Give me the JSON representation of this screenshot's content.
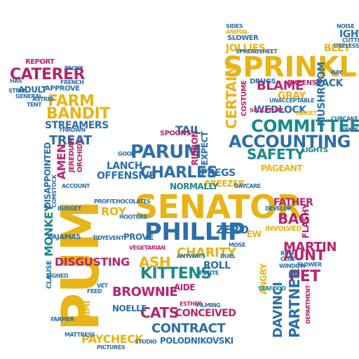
{
  "words": [
    {
      "text": "SENATOR",
      "color": "#1a8a8a"
    },
    {
      "text": "PUM",
      "color": "#e8b416"
    },
    {
      "text": "SPRINKLES",
      "color": "#e8b416"
    },
    {
      "text": "PHILLIP",
      "color": "#2d6fa8"
    },
    {
      "text": "ACCOUNTING",
      "color": "#2d6fa8"
    },
    {
      "text": "COMMITTEE",
      "color": "#1a8a8a"
    },
    {
      "text": "PARUM",
      "color": "#2d6fa8"
    },
    {
      "text": "CHARLES",
      "color": "#2d6fa8"
    },
    {
      "text": "CATERER",
      "color": "#b5266e"
    },
    {
      "text": "FARM",
      "color": "#e8b416"
    },
    {
      "text": "BANDIT",
      "color": "#e8b416"
    },
    {
      "text": "STREAMERS",
      "color": "#2d6fa8"
    },
    {
      "text": "TREAT",
      "color": "#2d6fa8"
    },
    {
      "text": "BLAME",
      "color": "#b5266e"
    },
    {
      "text": "CERTAIN",
      "color": "#e8b416"
    },
    {
      "text": "SAFETY",
      "color": "#1a8a8a"
    },
    {
      "text": "WEDLOCK",
      "color": "#2d6fa8"
    },
    {
      "text": "MARTIN",
      "color": "#b5266e"
    },
    {
      "text": "FATHER",
      "color": "#b5266e"
    },
    {
      "text": "BAG",
      "color": "#b5266e"
    },
    {
      "text": "AUNT",
      "color": "#b5266e"
    },
    {
      "text": "PET",
      "color": "#b5266e"
    },
    {
      "text": "PARTNER",
      "color": "#2d6fa8"
    },
    {
      "text": "DAVINCI",
      "color": "#2d6fa8"
    },
    {
      "text": "KITTENS",
      "color": "#1a8a8a"
    },
    {
      "text": "ASH",
      "color": "#e8b416"
    },
    {
      "text": "CHARITY",
      "color": "#e8b416"
    },
    {
      "text": "BROWNIE",
      "color": "#b5266e"
    },
    {
      "text": "CATS",
      "color": "#b5266e"
    },
    {
      "text": "CONCEIVED",
      "color": "#b5266e"
    },
    {
      "text": "CONTRACT",
      "color": "#2d6fa8"
    },
    {
      "text": "PAYCHECK",
      "color": "#e8b416"
    },
    {
      "text": "POLODNIKOVSKI",
      "color": "#2d6fa8"
    },
    {
      "text": "DISGUSTING",
      "color": "#b5266e"
    },
    {
      "text": "MONKEY",
      "color": "#1a8a8a"
    },
    {
      "text": "AMEN",
      "color": "#b5266e"
    },
    {
      "text": "DISAPPOINTED",
      "color": "#2d6fa8"
    },
    {
      "text": "JOLLIES",
      "color": "#e8b416"
    },
    {
      "text": "ZERO",
      "color": "#2d6fa8"
    },
    {
      "text": "PREGS",
      "color": "#2d6fa8"
    },
    {
      "text": "ROLL",
      "color": "#2d6fa8"
    },
    {
      "text": "ROY",
      "color": "#e8b416"
    },
    {
      "text": "LANCH",
      "color": "#2d6fa8"
    },
    {
      "text": "OFFENSIVE",
      "color": "#2d6fa8"
    },
    {
      "text": "REPORT",
      "color": "#b5266e"
    },
    {
      "text": "ADULT",
      "color": "#2d6fa8"
    },
    {
      "text": "APPROVE",
      "color": "#2d6fa8"
    },
    {
      "text": "TAIL",
      "color": "#2d6fa8"
    },
    {
      "text": "FREEZER",
      "color": "#e8b416"
    },
    {
      "text": "MUSHROOM",
      "color": "#2d6fa8"
    },
    {
      "text": "GRAY",
      "color": "#e8b416"
    },
    {
      "text": "EXPENSE",
      "color": "#b5266e"
    },
    {
      "text": "PACK",
      "color": "#2d6fa8"
    },
    {
      "text": "BEET",
      "color": "#e8b416"
    },
    {
      "text": "IGHT",
      "color": "#2d6fa8"
    },
    {
      "text": "NOELLE",
      "color": "#2d6fa8"
    },
    {
      "text": "MIMI",
      "color": "#e8b416"
    },
    {
      "text": "ANGRY",
      "color": "#e8b416"
    },
    {
      "text": "DRUGS",
      "color": "#2d6fa8"
    },
    {
      "text": "FLASHY",
      "color": "#b5266e"
    },
    {
      "text": "INVOLVED",
      "color": "#e8b416"
    },
    {
      "text": "PAGEANT",
      "color": "#e8b416"
    },
    {
      "text": "LIGHTS",
      "color": "#1a8a8a"
    },
    {
      "text": "SCULPTURE",
      "color": "#b5266e"
    },
    {
      "text": "SEAFOOD",
      "color": "#1a8a8a"
    },
    {
      "text": "WINDOW",
      "color": "#2d6fa8"
    },
    {
      "text": "AIDE",
      "color": "#b5266e"
    },
    {
      "text": "PROVE",
      "color": "#2d6fa8"
    },
    {
      "text": "VEGETARIAN",
      "color": "#b5266e"
    },
    {
      "text": "PAJAMAS",
      "color": "#2d6fa8"
    },
    {
      "text": "SLOWER",
      "color": "#2d6fa8"
    },
    {
      "text": "ANIMAL",
      "color": "#e8b416"
    },
    {
      "text": "DAYCARE",
      "color": "#2d6fa8"
    },
    {
      "text": "ESTHER",
      "color": "#b5266e"
    },
    {
      "text": "SPOONS",
      "color": "#b5266e"
    },
    {
      "text": "EXPECT",
      "color": "#2d6fa8"
    },
    {
      "text": "RIBBON",
      "color": "#b5266e"
    },
    {
      "text": "NORMALLY",
      "color": "#1a8a8a"
    },
    {
      "text": "TARGET",
      "color": "#e8b416"
    },
    {
      "text": "CUPCAKE",
      "color": "#2d6fa8"
    },
    {
      "text": "CLAUSE",
      "color": "#2d6fa8"
    },
    {
      "text": "SIGNED",
      "color": "#2d6fa8"
    },
    {
      "text": "FARMER",
      "color": "#2d6fa8"
    },
    {
      "text": "SPREADSHEET",
      "color": "#2d6fa8"
    },
    {
      "text": "DUEL",
      "color": "#2d6fa8"
    },
    {
      "text": "MOSE",
      "color": "#2d6fa8"
    },
    {
      "text": "PETITE",
      "color": "#2d6fa8"
    },
    {
      "text": "STUDIO",
      "color": "#2d6fa8"
    },
    {
      "text": "VET",
      "color": "#2d6fa8"
    },
    {
      "text": "FEED",
      "color": "#2d6fa8"
    },
    {
      "text": "MATTRESS",
      "color": "#2d6fa8"
    },
    {
      "text": "ORCHIDS",
      "color": "#b5266e"
    },
    {
      "text": "JEREDIAH",
      "color": "#b5266e"
    },
    {
      "text": "ACCOUNT",
      "color": "#2d6fa8"
    },
    {
      "text": "BUDGET",
      "color": "#2d6fa8"
    },
    {
      "text": "ANYWAYS",
      "color": "#2d6fa8"
    },
    {
      "text": "GOOD",
      "color": "#2d6fa8"
    },
    {
      "text": "HAS",
      "color": "#2d6fa8"
    },
    {
      "text": "FRENCH",
      "color": "#2d6fa8"
    },
    {
      "text": "STRIP",
      "color": "#2d6fa8"
    },
    {
      "text": "GENERAL",
      "color": "#2d6fa8"
    },
    {
      "text": "ASTRID",
      "color": "#2d6fa8"
    },
    {
      "text": "TENT",
      "color": "#2d6fa8"
    },
    {
      "text": "TACKY",
      "color": "#2d6fa8"
    },
    {
      "text": "THROWN",
      "color": "#2d6fa8"
    },
    {
      "text": "USELESS",
      "color": "#2d6fa8"
    },
    {
      "text": "SIDES",
      "color": "#2d6fa8"
    },
    {
      "text": "DEVELOP",
      "color": "#2d6fa8"
    },
    {
      "text": "PROFIT",
      "color": "#2d6fa8"
    },
    {
      "text": "CHOCOLATES",
      "color": "#2d6fa8"
    },
    {
      "text": "TIDY",
      "color": "#2d6fa8"
    },
    {
      "text": "EVENT",
      "color": "#2d6fa8"
    },
    {
      "text": "PICTURES",
      "color": "#2d6fa8"
    },
    {
      "text": "FLOWER",
      "color": "#2d6fa8"
    },
    {
      "text": "CLUE",
      "color": "#2d6fa8"
    },
    {
      "text": "RUM",
      "color": "#2d6fa8"
    },
    {
      "text": "STATE",
      "color": "#2d6fa8"
    },
    {
      "text": "DEPARTMENT",
      "color": "#b5266e"
    },
    {
      "text": "FILMING",
      "color": "#2d6fa8"
    },
    {
      "text": "CUTTING",
      "color": "#2d6fa8"
    },
    {
      "text": "HOOTERS",
      "color": "#2d6fa8"
    },
    {
      "text": "COMSTOCK",
      "color": "#2d6fa8"
    },
    {
      "text": "EW",
      "color": "#e8b416"
    },
    {
      "text": "UNACCEPTABLE",
      "color": "#2d6fa8"
    },
    {
      "text": "COSTUME",
      "color": "#b5266e"
    },
    {
      "text": "HAY",
      "color": "#2d6fa8"
    },
    {
      "text": "NOISE",
      "color": "#2d6fa8"
    }
  ]
}
